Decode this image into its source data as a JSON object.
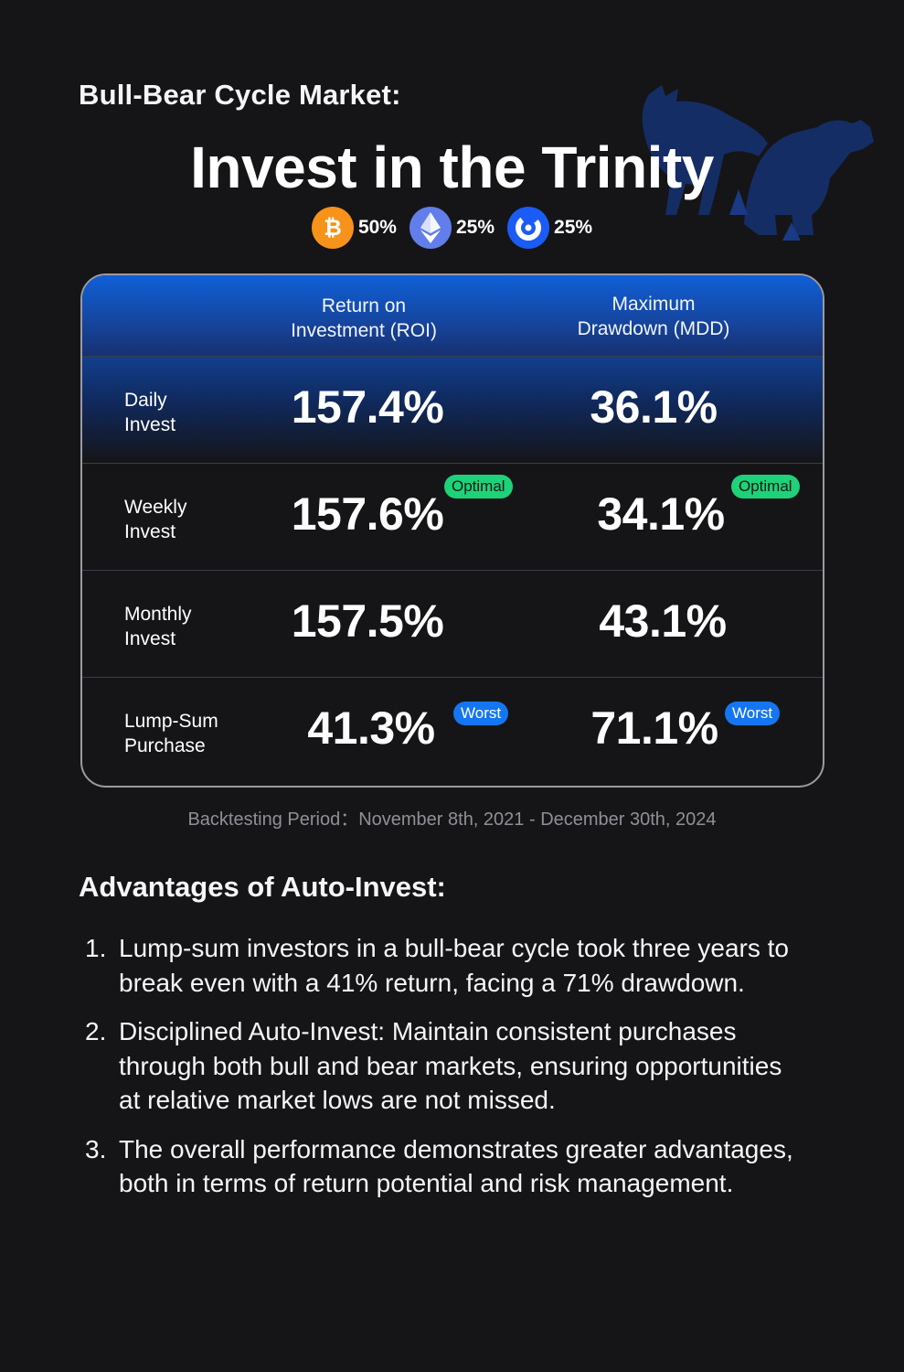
{
  "header": {
    "eyebrow": "Bull-Bear Cycle Market:",
    "title": "Invest in the Trinity"
  },
  "allocation": [
    {
      "icon": "bitcoin-icon",
      "percent": "50%",
      "color": "#f7931a"
    },
    {
      "icon": "ethereum-icon",
      "percent": "25%",
      "color": "#627eea"
    },
    {
      "icon": "exchange-token-icon",
      "percent": "25%",
      "color": "#1a5cf5"
    }
  ],
  "table": {
    "headers": {
      "roi": "Return on\nInvestment (ROI)",
      "mdd": "Maximum\nDrawdown (MDD)"
    },
    "rows": [
      {
        "label": "Daily\nInvest",
        "roi": "157.4%",
        "mdd": "36.1%",
        "roi_badge": "",
        "mdd_badge": ""
      },
      {
        "label": "Weekly\nInvest",
        "roi": "157.6%",
        "mdd": "34.1%",
        "roi_badge": "Optimal",
        "mdd_badge": "Optimal"
      },
      {
        "label": "Monthly\nInvest",
        "roi": "157.5%",
        "mdd": "43.1%",
        "roi_badge": "",
        "mdd_badge": ""
      },
      {
        "label": "Lump-Sum\nPurchase",
        "roi": "41.3%",
        "mdd": "71.1%",
        "roi_badge": "Worst",
        "mdd_badge": "Worst"
      }
    ]
  },
  "backtest": "Backtesting Period：November 8th, 2021 - December 30th, 2024",
  "advantages": {
    "title": "Advantages of Auto-Invest:",
    "items": [
      {
        "num": "1.",
        "text": "Lump-sum investors in a bull-bear cycle took three years to break even with a 41% return, facing a 71% drawdown."
      },
      {
        "num": "2.",
        "text": "Disciplined Auto-Invest: Maintain consistent purchases through both bull and bear markets, ensuring opportunities at relative market lows are not missed."
      },
      {
        "num": "3.",
        "text": "The overall performance demonstrates greater advantages, both in terms of return potential and risk management."
      }
    ]
  },
  "colors": {
    "background": "#151517",
    "header_blue": "#0f5fd7",
    "optimal_badge": "#1ed27a",
    "worst_badge": "#1476f2"
  }
}
